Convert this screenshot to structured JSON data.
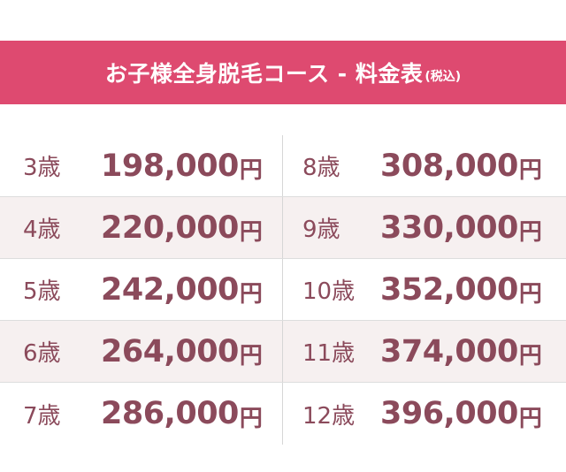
{
  "header": {
    "title": "お子様全身脱毛コース - 料金表",
    "note": "(税込)"
  },
  "table": {
    "rows": [
      [
        {
          "age": "3歳",
          "price": "198,000",
          "unit": "円"
        },
        {
          "age": "8歳",
          "price": "308,000",
          "unit": "円"
        }
      ],
      [
        {
          "age": "4歳",
          "price": "220,000",
          "unit": "円"
        },
        {
          "age": "9歳",
          "price": "330,000",
          "unit": "円"
        }
      ],
      [
        {
          "age": "5歳",
          "price": "242,000",
          "unit": "円"
        },
        {
          "age": "10歳",
          "price": "352,000",
          "unit": "円"
        }
      ],
      [
        {
          "age": "6歳",
          "price": "264,000",
          "unit": "円"
        },
        {
          "age": "11歳",
          "price": "374,000",
          "unit": "円"
        }
      ],
      [
        {
          "age": "7歳",
          "price": "286,000",
          "unit": "円"
        },
        {
          "age": "12歳",
          "price": "396,000",
          "unit": "円"
        }
      ]
    ]
  }
}
